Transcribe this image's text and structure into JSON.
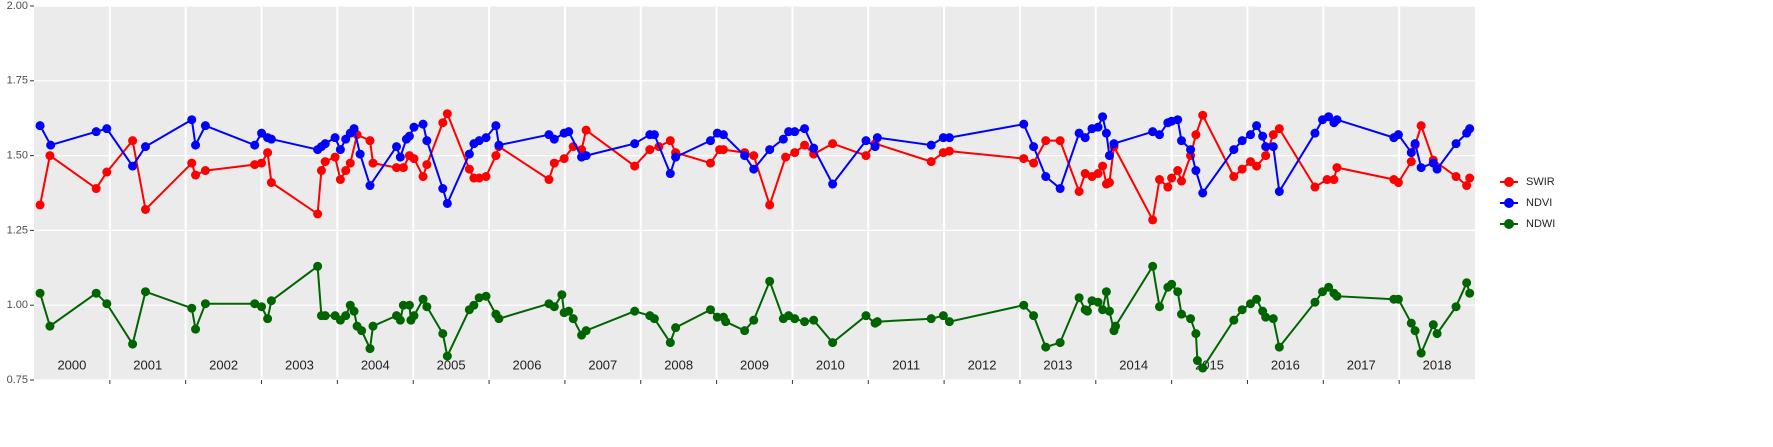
{
  "chart_data": {
    "type": "line",
    "legend_position": "right",
    "xlim": [
      2000,
      2019
    ],
    "xticks": [
      {
        "value": 2000.5,
        "label": "2000"
      },
      {
        "value": 2001.5,
        "label": "2001"
      },
      {
        "value": 2002.5,
        "label": "2002"
      },
      {
        "value": 2003.5,
        "label": "2003"
      },
      {
        "value": 2004.5,
        "label": "2004"
      },
      {
        "value": 2005.5,
        "label": "2005"
      },
      {
        "value": 2006.5,
        "label": "2006"
      },
      {
        "value": 2007.5,
        "label": "2007"
      },
      {
        "value": 2008.5,
        "label": "2008"
      },
      {
        "value": 2009.5,
        "label": "2009"
      },
      {
        "value": 2010.5,
        "label": "2010"
      },
      {
        "value": 2011.5,
        "label": "2011"
      },
      {
        "value": 2012.5,
        "label": "2012"
      },
      {
        "value": 2013.5,
        "label": "2013"
      },
      {
        "value": 2014.5,
        "label": "2014"
      },
      {
        "value": 2015.5,
        "label": "2015"
      },
      {
        "value": 2016.5,
        "label": "2016"
      },
      {
        "value": 2017.5,
        "label": "2017"
      },
      {
        "value": 2018.5,
        "label": "2018"
      }
    ],
    "xgrid": [
      2001,
      2002,
      2003,
      2004,
      2005,
      2006,
      2007,
      2008,
      2009,
      2010,
      2011,
      2012,
      2013,
      2014,
      2015,
      2016,
      2017,
      2018
    ],
    "ylim": [
      0.75,
      2.0
    ],
    "yticks": [
      0.75,
      {
        "value": 1.0,
        "label": "1.00"
      },
      1.25,
      {
        "value": 1.5,
        "label": "1.50"
      },
      1.75,
      {
        "value": 2.0,
        "label": "2.00"
      }
    ],
    "grid": true,
    "series": [
      {
        "name": "SWIR",
        "color": "#ff0000",
        "x": [
          2000.08,
          2000.21,
          2000.82,
          2000.96,
          2001.3,
          2001.47,
          2002.08,
          2002.13,
          2002.26,
          2002.91,
          2003.0,
          2003.08,
          2003.13,
          2003.74,
          2003.79,
          2003.84,
          2003.97,
          2004.04,
          2004.11,
          2004.17,
          2004.26,
          2004.43,
          2004.47,
          2004.78,
          2004.87,
          2004.95,
          2005.01,
          2005.13,
          2005.18,
          2005.39,
          2005.45,
          2005.74,
          2005.8,
          2005.87,
          2005.96,
          2006.09,
          2006.13,
          2006.79,
          2006.86,
          2006.99,
          2007.11,
          2007.22,
          2007.28,
          2007.92,
          2008.12,
          2008.24,
          2008.39,
          2008.46,
          2008.92,
          2009.04,
          2009.09,
          2009.37,
          2009.49,
          2009.7,
          2009.91,
          2010.03,
          2010.16,
          2010.28,
          2010.53,
          2010.97,
          2011.09,
          2011.83,
          2011.99,
          2012.07,
          2013.05,
          2013.18,
          2013.34,
          2013.53,
          2013.78,
          2013.86,
          2013.95,
          2014.03,
          2014.09,
          2014.14,
          2014.18,
          2014.24,
          2014.75,
          2014.84,
          2014.95,
          2015.0,
          2015.08,
          2015.13,
          2015.25,
          2015.32,
          2015.41,
          2015.82,
          2015.93,
          2016.04,
          2016.12,
          2016.24,
          2016.34,
          2016.42,
          2016.89,
          2017.05,
          2017.14,
          2017.18,
          2017.93,
          2017.99,
          2018.16,
          2018.21,
          2018.29,
          2018.45,
          2018.75,
          2018.89,
          2018.93
        ],
        "values": [
          1.335,
          1.5,
          1.39,
          1.445,
          1.55,
          1.32,
          1.475,
          1.435,
          1.45,
          1.47,
          1.475,
          1.51,
          1.41,
          1.305,
          1.45,
          1.48,
          1.495,
          1.42,
          1.45,
          1.475,
          1.57,
          1.55,
          1.475,
          1.46,
          1.46,
          1.5,
          1.49,
          1.43,
          1.47,
          1.61,
          1.64,
          1.455,
          1.425,
          1.425,
          1.43,
          1.5,
          1.53,
          1.42,
          1.475,
          1.49,
          1.53,
          1.52,
          1.585,
          1.465,
          1.52,
          1.53,
          1.55,
          1.51,
          1.475,
          1.52,
          1.52,
          1.51,
          1.5,
          1.335,
          1.495,
          1.51,
          1.535,
          1.505,
          1.54,
          1.5,
          1.54,
          1.48,
          1.51,
          1.515,
          1.49,
          1.475,
          1.55,
          1.55,
          1.38,
          1.44,
          1.43,
          1.44,
          1.465,
          1.405,
          1.41,
          1.53,
          1.285,
          1.42,
          1.395,
          1.425,
          1.45,
          1.415,
          1.5,
          1.57,
          1.635,
          1.43,
          1.455,
          1.48,
          1.465,
          1.5,
          1.57,
          1.59,
          1.395,
          1.42,
          1.42,
          1.46,
          1.42,
          1.41,
          1.48,
          1.535,
          1.6,
          1.485,
          1.43,
          1.4,
          1.425
        ]
      },
      {
        "name": "NDVI",
        "color": "#0000ff",
        "x": [
          2000.08,
          2000.22,
          2000.82,
          2000.96,
          2001.3,
          2001.47,
          2002.08,
          2002.13,
          2002.26,
          2002.91,
          2003.0,
          2003.08,
          2003.13,
          2003.74,
          2003.79,
          2003.84,
          2003.97,
          2004.04,
          2004.11,
          2004.17,
          2004.22,
          2004.3,
          2004.43,
          2004.78,
          2004.83,
          2004.91,
          2004.95,
          2005.01,
          2005.13,
          2005.18,
          2005.39,
          2005.45,
          2005.74,
          2005.8,
          2005.87,
          2005.96,
          2006.09,
          2006.13,
          2006.79,
          2006.86,
          2006.99,
          2007.05,
          2007.22,
          2007.28,
          2007.92,
          2008.12,
          2008.18,
          2008.39,
          2008.46,
          2008.92,
          2009.01,
          2009.09,
          2009.37,
          2009.49,
          2009.7,
          2009.88,
          2009.95,
          2010.03,
          2010.16,
          2010.28,
          2010.53,
          2010.97,
          2011.09,
          2011.12,
          2011.83,
          2011.99,
          2012.07,
          2013.05,
          2013.18,
          2013.34,
          2013.53,
          2013.78,
          2013.86,
          2013.95,
          2014.03,
          2014.09,
          2014.14,
          2014.18,
          2014.24,
          2014.75,
          2014.84,
          2014.95,
          2015.0,
          2015.08,
          2015.13,
          2015.25,
          2015.32,
          2015.41,
          2015.82,
          2015.93,
          2016.04,
          2016.12,
          2016.2,
          2016.24,
          2016.34,
          2016.42,
          2016.89,
          2016.99,
          2017.07,
          2017.14,
          2017.18,
          2017.93,
          2017.99,
          2018.16,
          2018.21,
          2018.29,
          2018.45,
          2018.5,
          2018.75,
          2018.89,
          2018.93
        ],
        "values": [
          1.6,
          1.535,
          1.58,
          1.59,
          1.465,
          1.53,
          1.62,
          1.535,
          1.6,
          1.535,
          1.575,
          1.56,
          1.555,
          1.52,
          1.53,
          1.54,
          1.56,
          1.52,
          1.555,
          1.575,
          1.59,
          1.505,
          1.4,
          1.53,
          1.495,
          1.555,
          1.565,
          1.595,
          1.605,
          1.55,
          1.39,
          1.34,
          1.505,
          1.54,
          1.55,
          1.56,
          1.6,
          1.535,
          1.57,
          1.555,
          1.575,
          1.58,
          1.495,
          1.5,
          1.54,
          1.57,
          1.57,
          1.44,
          1.495,
          1.55,
          1.575,
          1.57,
          1.5,
          1.455,
          1.52,
          1.555,
          1.58,
          1.58,
          1.59,
          1.525,
          1.405,
          1.55,
          1.53,
          1.56,
          1.535,
          1.56,
          1.56,
          1.605,
          1.53,
          1.43,
          1.39,
          1.575,
          1.56,
          1.59,
          1.595,
          1.63,
          1.575,
          1.5,
          1.54,
          1.58,
          1.57,
          1.61,
          1.615,
          1.62,
          1.55,
          1.52,
          1.45,
          1.375,
          1.52,
          1.55,
          1.57,
          1.6,
          1.565,
          1.53,
          1.53,
          1.38,
          1.575,
          1.62,
          1.63,
          1.61,
          1.62,
          1.56,
          1.57,
          1.51,
          1.54,
          1.46,
          1.475,
          1.455,
          1.54,
          1.575,
          1.59
        ]
      },
      {
        "name": "NDWI",
        "color": "#006400",
        "x": [
          2000.08,
          2000.21,
          2000.82,
          2000.96,
          2001.3,
          2001.47,
          2002.08,
          2002.13,
          2002.26,
          2002.91,
          2003.0,
          2003.08,
          2003.13,
          2003.74,
          2003.79,
          2003.84,
          2003.97,
          2004.04,
          2004.11,
          2004.17,
          2004.22,
          2004.26,
          2004.32,
          2004.43,
          2004.47,
          2004.78,
          2004.83,
          2004.87,
          2004.95,
          2004.97,
          2005.01,
          2005.13,
          2005.18,
          2005.39,
          2005.45,
          2005.74,
          2005.8,
          2005.87,
          2005.96,
          2006.09,
          2006.13,
          2006.79,
          2006.86,
          2006.96,
          2006.99,
          2007.05,
          2007.11,
          2007.22,
          2007.28,
          2007.92,
          2008.12,
          2008.18,
          2008.39,
          2008.46,
          2008.92,
          2009.01,
          2009.09,
          2009.12,
          2009.37,
          2009.49,
          2009.7,
          2009.88,
          2009.95,
          2010.03,
          2010.16,
          2010.28,
          2010.53,
          2010.97,
          2011.09,
          2011.12,
          2011.83,
          2011.99,
          2012.07,
          2013.05,
          2013.18,
          2013.34,
          2013.53,
          2013.78,
          2013.86,
          2013.89,
          2013.95,
          2014.03,
          2014.09,
          2014.14,
          2014.18,
          2014.24,
          2014.26,
          2014.75,
          2014.84,
          2014.95,
          2015.0,
          2015.08,
          2015.13,
          2015.25,
          2015.32,
          2015.34,
          2015.41,
          2015.82,
          2015.93,
          2016.04,
          2016.12,
          2016.2,
          2016.24,
          2016.34,
          2016.42,
          2016.89,
          2016.99,
          2017.07,
          2017.14,
          2017.18,
          2017.93,
          2017.99,
          2018.16,
          2018.21,
          2018.29,
          2018.45,
          2018.5,
          2018.75,
          2018.89,
          2018.93
        ],
        "values": [
          1.04,
          0.93,
          1.04,
          1.005,
          0.87,
          1.045,
          0.99,
          0.92,
          1.005,
          1.005,
          0.995,
          0.955,
          1.015,
          1.13,
          0.965,
          0.965,
          0.965,
          0.95,
          0.965,
          1.0,
          0.98,
          0.93,
          0.915,
          0.855,
          0.93,
          0.965,
          0.95,
          1.0,
          1.0,
          0.95,
          0.965,
          1.02,
          0.995,
          0.905,
          0.83,
          0.985,
          1.0,
          1.025,
          1.03,
          0.97,
          0.955,
          1.005,
          0.995,
          1.035,
          0.975,
          0.98,
          0.955,
          0.9,
          0.915,
          0.98,
          0.965,
          0.955,
          0.875,
          0.925,
          0.985,
          0.96,
          0.96,
          0.945,
          0.915,
          0.95,
          1.08,
          0.955,
          0.965,
          0.955,
          0.945,
          0.95,
          0.875,
          0.965,
          0.94,
          0.945,
          0.955,
          0.965,
          0.945,
          1.0,
          0.965,
          0.86,
          0.875,
          1.025,
          0.985,
          0.98,
          1.015,
          1.01,
          0.985,
          1.045,
          0.98,
          0.915,
          0.93,
          1.13,
          0.995,
          1.06,
          1.07,
          1.045,
          0.97,
          0.955,
          0.905,
          0.815,
          0.79,
          0.95,
          0.985,
          1.005,
          1.02,
          0.98,
          0.96,
          0.955,
          0.86,
          1.01,
          1.045,
          1.06,
          1.04,
          1.03,
          1.02,
          1.02,
          0.94,
          0.915,
          0.84,
          0.935,
          0.905,
          0.995,
          1.075,
          1.04
        ]
      }
    ]
  }
}
